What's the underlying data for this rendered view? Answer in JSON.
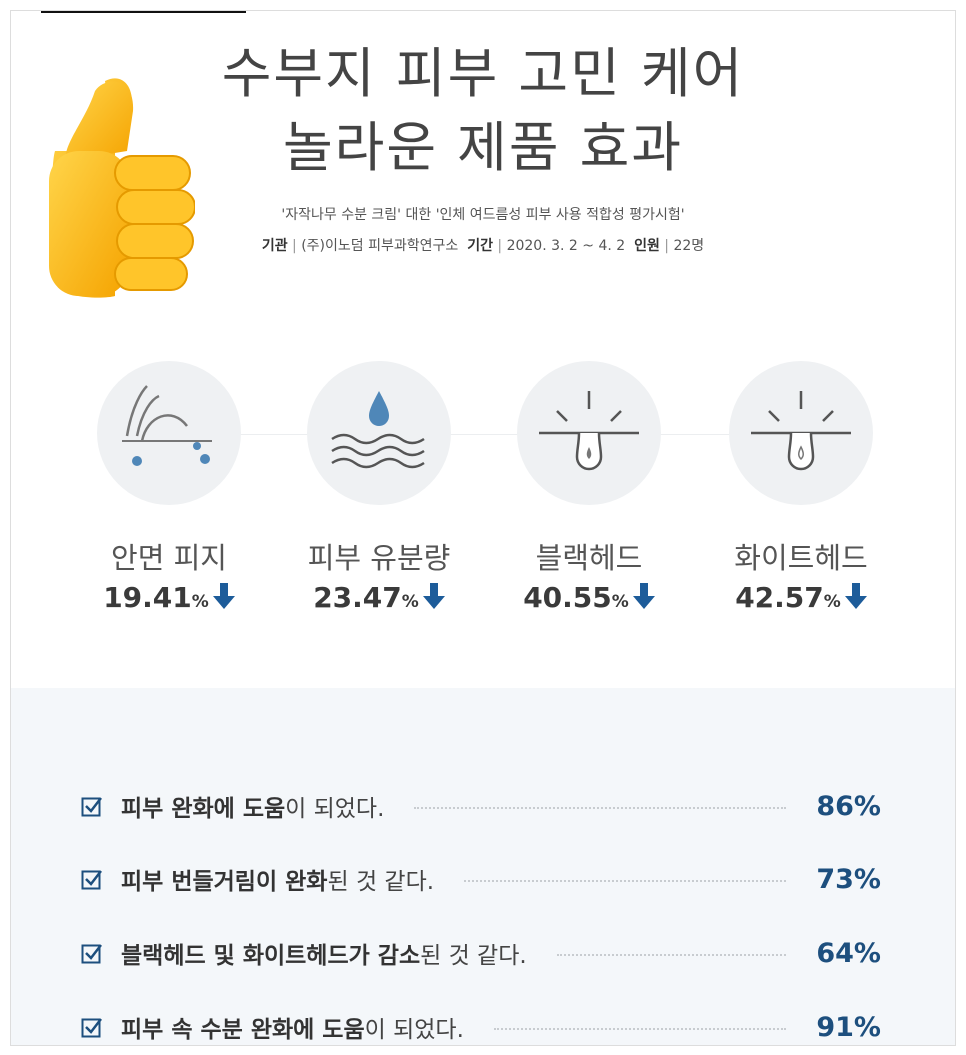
{
  "header": {
    "title_lines": [
      "수부지 피부 고민 케어",
      "놀라운 제품 효과"
    ],
    "subtitle": "'자작나무 수분 크림' 대한 '인체 여드름성 피부 사용 적합성 평가시험'",
    "meta": [
      {
        "key": "기관",
        "value": "(주)이노덤 피부과학연구소"
      },
      {
        "key": "기간",
        "value": "2020. 3. 2 ~ 4. 2"
      },
      {
        "key": "인원",
        "value": "22명"
      }
    ]
  },
  "metrics": [
    {
      "label": "안면 피지",
      "value": "19.41",
      "unit": "%"
    },
    {
      "label": "피부 유분량",
      "value": "23.47",
      "unit": "%"
    },
    {
      "label": "블랙헤드",
      "value": "40.55",
      "unit": "%"
    },
    {
      "label": "화이트헤드",
      "value": "42.57",
      "unit": "%"
    }
  ],
  "survey": [
    {
      "parts": [
        {
          "text": "피부 완화에 도움",
          "bold": true
        },
        {
          "text": "이 되었다.",
          "bold": false
        }
      ],
      "percent": "86%"
    },
    {
      "parts": [
        {
          "text": "피부 번들거림이 완화",
          "bold": true
        },
        {
          "text": "된 것 같다.",
          "bold": false
        }
      ],
      "percent": "73%"
    },
    {
      "parts": [
        {
          "text": "블랙헤드 및 화이트헤드가 감소",
          "bold": true
        },
        {
          "text": "된 것 같다.",
          "bold": false
        }
      ],
      "percent": "64%"
    },
    {
      "parts": [
        {
          "text": "피부 속 수분 완화에 도움",
          "bold": true
        },
        {
          "text": "이 되었다.",
          "bold": false
        }
      ],
      "percent": "91%"
    }
  ]
}
